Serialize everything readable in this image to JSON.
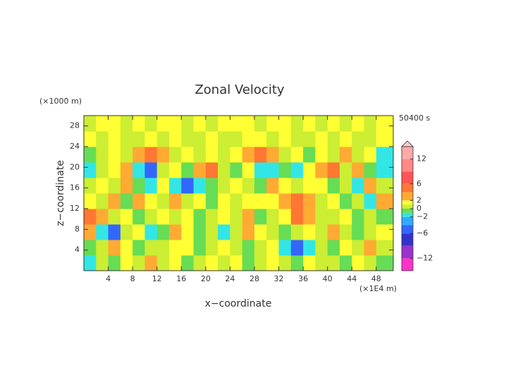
{
  "chart_data": {
    "type": "contour",
    "title": "Zonal Velocity",
    "x_label": "x−coordinate",
    "y_label": "z−coordinate",
    "x_unit": "(×1E4 m)",
    "y_unit": "(×1000 m)",
    "time_label": "50400 s",
    "xlim": [
      0,
      50.8
    ],
    "ylim": [
      0,
      30
    ],
    "xticks": [
      4,
      8,
      12,
      16,
      20,
      24,
      28,
      32,
      36,
      40,
      44,
      48
    ],
    "yticks": [
      4,
      8,
      12,
      16,
      20,
      24,
      28
    ],
    "x": [
      1,
      3,
      5,
      7,
      9,
      11,
      13,
      15,
      17,
      19,
      21,
      23,
      25,
      27,
      29,
      31,
      33,
      35,
      37,
      39,
      41,
      43,
      45,
      47,
      49
    ],
    "y": [
      1.5,
      4.5,
      7.5,
      10.5,
      13.5,
      16.5,
      19.5,
      22.5,
      25.5,
      28.5
    ],
    "z": [
      [
        -1.5,
        0.5,
        -0.5,
        1.5,
        0.5,
        3,
        0.5,
        1.5,
        -0.5,
        0.5,
        1.5,
        0.5,
        1.5,
        -0.5,
        0.5,
        1.5,
        0.5,
        -0.5,
        1.5,
        0.5,
        0.5,
        -0.5,
        1.5,
        0.5,
        -0.5
      ],
      [
        -0.5,
        0.5,
        3,
        1.5,
        -0.5,
        0.5,
        0.5,
        1.5,
        1.5,
        -0.5,
        0.5,
        1.5,
        0.5,
        -0.5,
        0.5,
        1.5,
        -1.5,
        -4.5,
        -1.5,
        0.5,
        -0.5,
        1.5,
        0.5,
        3,
        0.5
      ],
      [
        3,
        -1.5,
        -4.5,
        0.5,
        1.5,
        -1.5,
        -0.5,
        3,
        1.5,
        -0.5,
        0.5,
        -1.5,
        0.5,
        3,
        1.5,
        0.5,
        -0.5,
        0.5,
        1.5,
        0.5,
        3,
        0.5,
        -0.5,
        0.5,
        1.5
      ],
      [
        5,
        3,
        0.5,
        1.5,
        -0.5,
        0.5,
        1.5,
        0.5,
        1.5,
        -0.5,
        0.5,
        1.5,
        0.5,
        3,
        -0.5,
        0.5,
        1.5,
        5,
        3,
        0.5,
        0.5,
        1.5,
        -0.5,
        0.5,
        -0.5
      ],
      [
        1.5,
        0.5,
        3,
        -0.5,
        3,
        1.5,
        0.5,
        3,
        0.5,
        1.5,
        -0.5,
        1.5,
        0.5,
        1.5,
        1.5,
        1.5,
        3,
        5,
        3,
        0.5,
        1.5,
        -0.5,
        0.5,
        -1.5,
        3
      ],
      [
        0.5,
        1.5,
        0.5,
        3,
        -0.5,
        -1.5,
        1.5,
        -1.5,
        -4.5,
        -1.5,
        -0.5,
        0.5,
        1.5,
        0.5,
        -0.5,
        3,
        1.5,
        0.5,
        1.5,
        1.5,
        -0.5,
        0.5,
        -1.5,
        3,
        0.5
      ],
      [
        -1.5,
        0.5,
        1.5,
        3,
        -1.5,
        -4.5,
        0.5,
        1.5,
        -0.5,
        3,
        5,
        0.5,
        -0.5,
        1.5,
        -1.5,
        -1.5,
        -0.5,
        -1.5,
        1.5,
        3,
        5,
        0.5,
        3,
        -0.5,
        -1.5
      ],
      [
        -0.5,
        0.5,
        1.5,
        0.5,
        3,
        5,
        3,
        0.5,
        1.5,
        0.5,
        1.5,
        0.5,
        1.5,
        3,
        5,
        3,
        0.5,
        1.5,
        -0.5,
        1.5,
        0.5,
        3,
        0.5,
        1.5,
        -1.5
      ],
      [
        1.5,
        0.5,
        1.5,
        0.5,
        0.5,
        1.5,
        0.5,
        1.5,
        0.5,
        0.5,
        1.5,
        0.5,
        0.5,
        1.5,
        1.5,
        0.5,
        1.5,
        0.5,
        0.5,
        1.5,
        0.5,
        1.5,
        0.5,
        0.5,
        1.5
      ],
      [
        0.5,
        1.5,
        1.5,
        0.5,
        1.5,
        0.5,
        1.5,
        1.5,
        0.5,
        1.5,
        0.5,
        1.5,
        1.5,
        1.5,
        0.5,
        1.5,
        1.5,
        0.5,
        1.5,
        0.5,
        1.5,
        0.5,
        1.5,
        0.5,
        1.5
      ]
    ],
    "colorbar": {
      "lim": [
        -15,
        15
      ],
      "levels": [
        -15,
        -12,
        -9,
        -6,
        -4,
        -2,
        -1,
        0,
        1,
        2,
        4,
        6,
        9,
        12,
        15
      ],
      "colors": [
        "#ff33cc",
        "#9933cc",
        "#3333cc",
        "#3366ff",
        "#33aaff",
        "#33e6e6",
        "#66dd55",
        "#ccee33",
        "#ffff33",
        "#ffaa33",
        "#ff7733",
        "#ff5555",
        "#ff8888",
        "#ffaaaa"
      ],
      "ticks": [
        12,
        6,
        2,
        0,
        {
          "value": -2,
          "label": "−2"
        },
        {
          "value": -6,
          "label": "−6"
        },
        {
          "value": -12,
          "label": "−12"
        }
      ]
    }
  }
}
